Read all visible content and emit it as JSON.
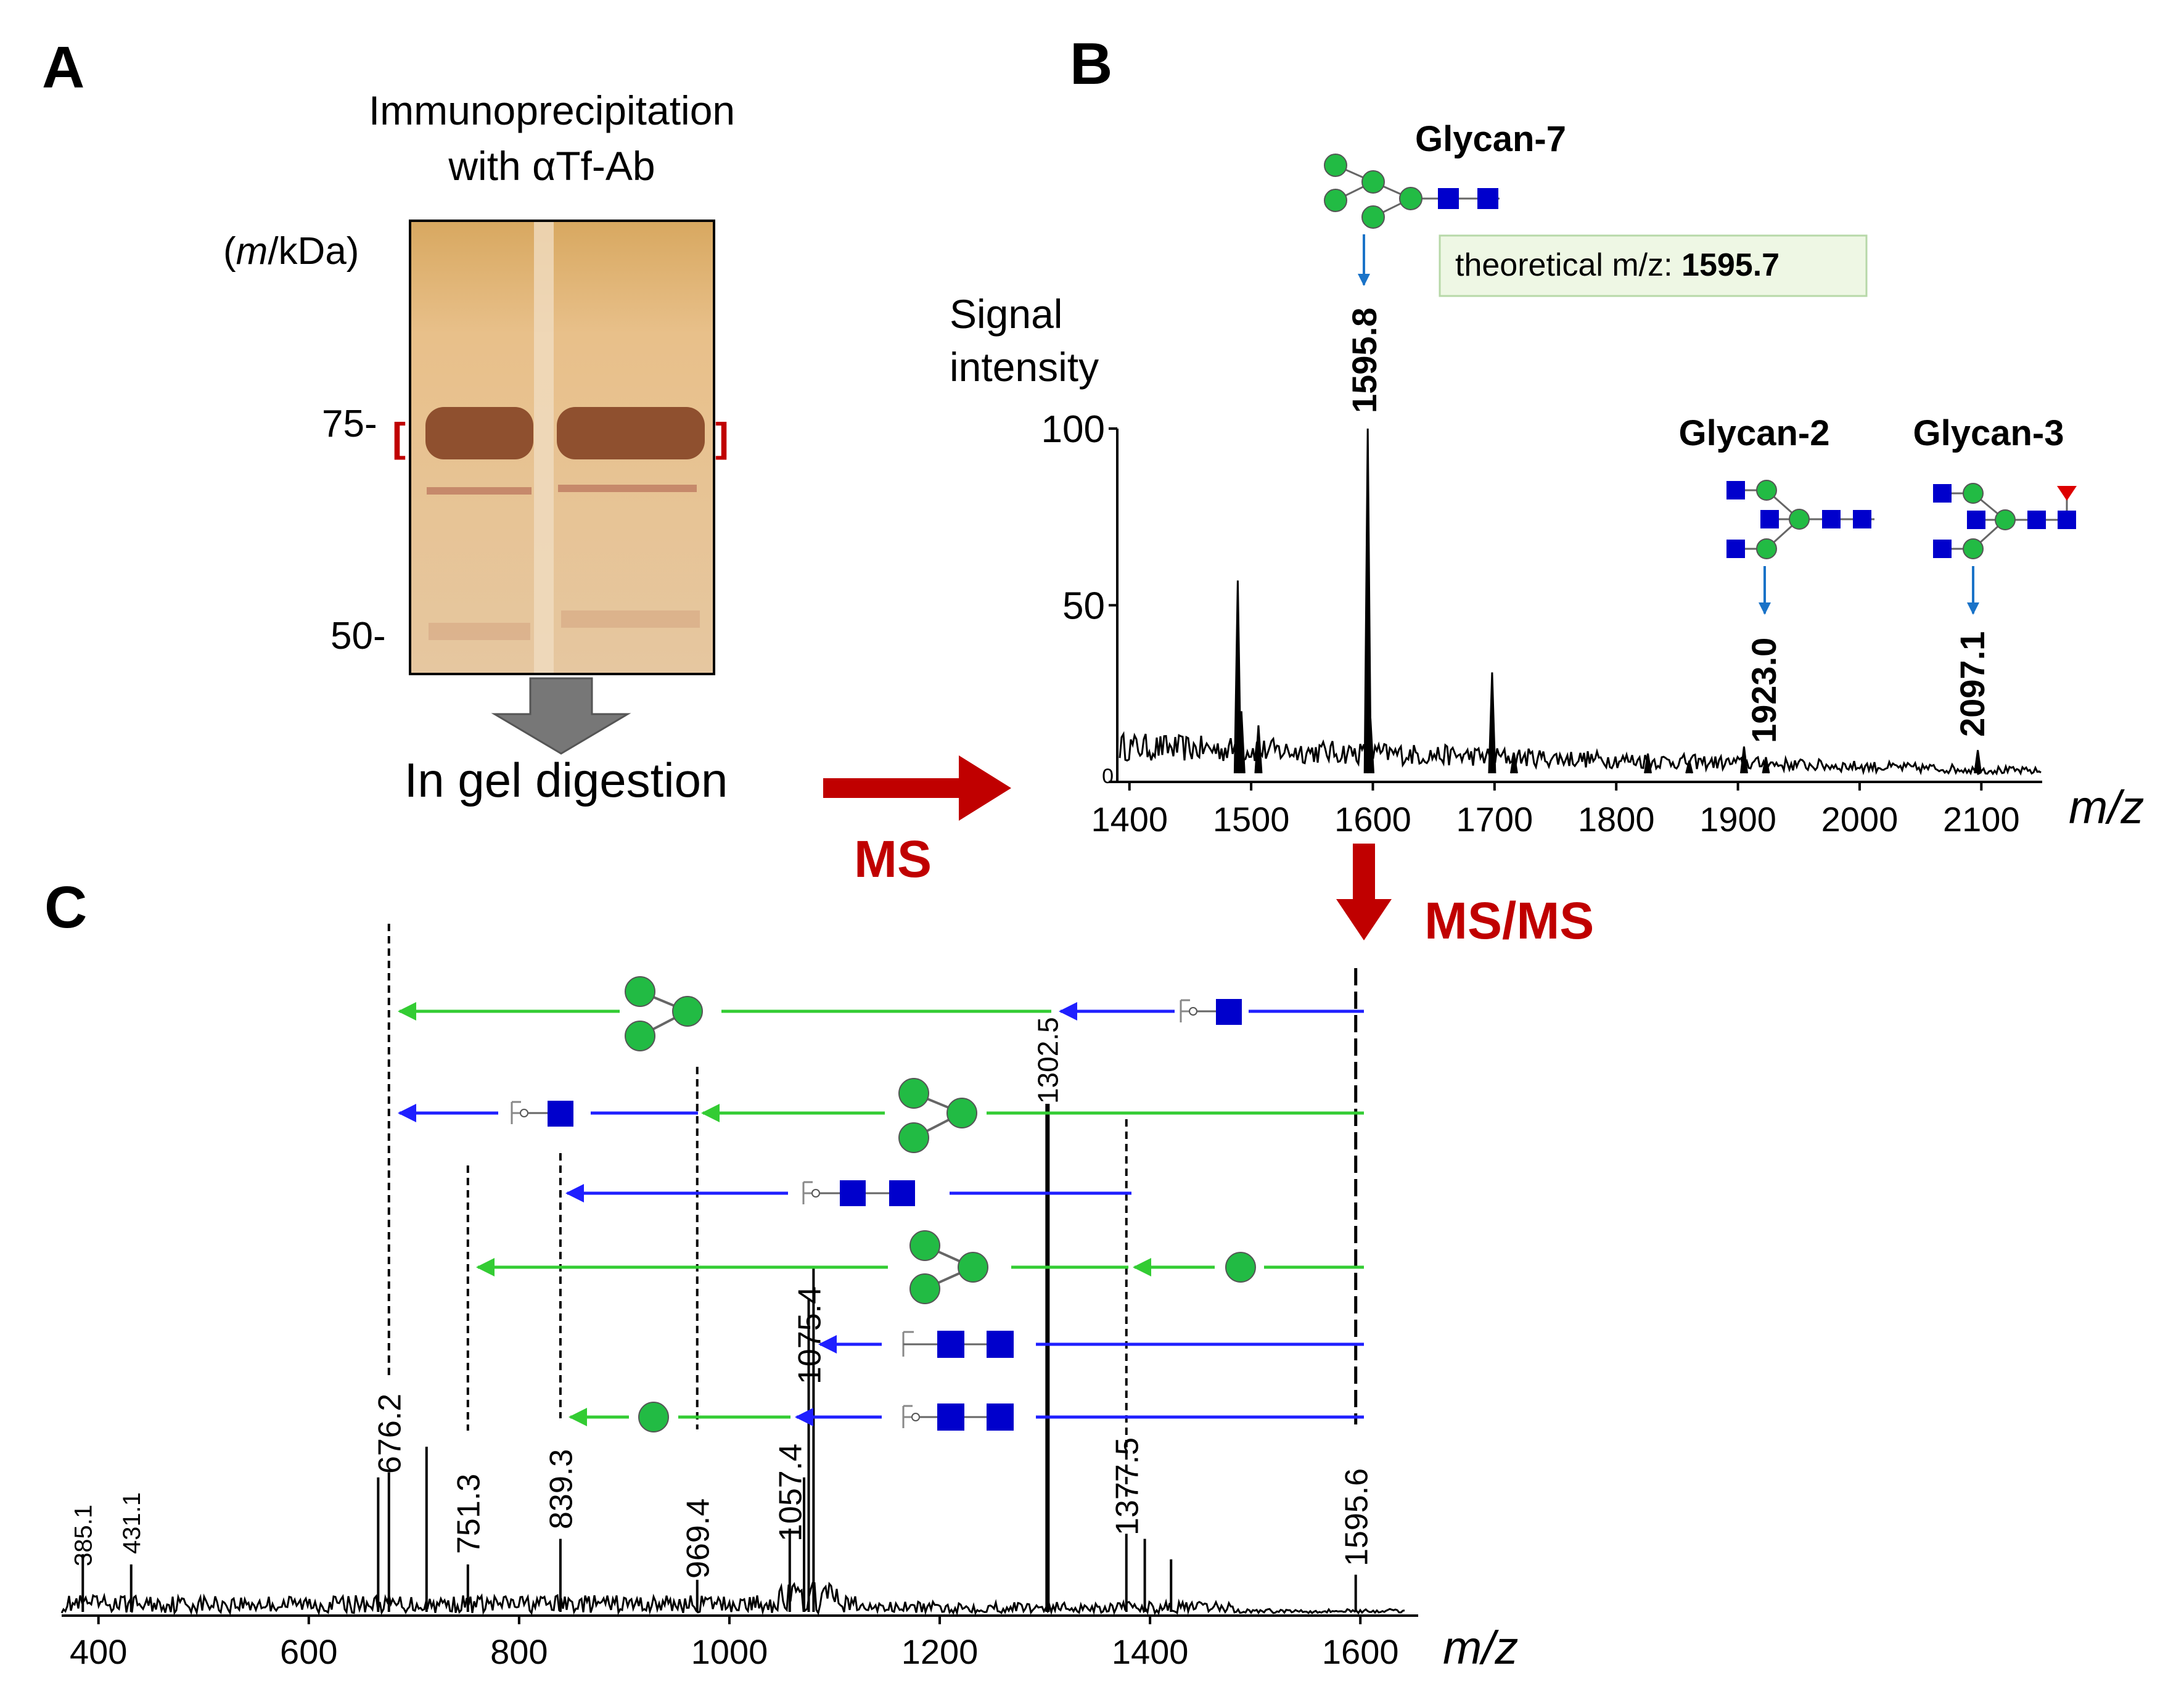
{
  "panels": {
    "a": "A",
    "b": "B",
    "c": "C"
  },
  "colors": {
    "red": "#c00000",
    "green": "#33cc33",
    "blue": "#1f1fff",
    "glycanBlue": "#0000cc",
    "glycanGreen": "#22bb44",
    "arrowBlue": "#1a73c8",
    "gel": "#e6c392",
    "band": "#8a4a2a"
  },
  "gel": {
    "title_line1": "Immunoprecipitation",
    "title_line2": "with αTf-Ab",
    "unit_prefix": "(",
    "unit_m": "m",
    "unit_rest": "/kDa)",
    "marker_75": "75-",
    "marker_50": "50-",
    "bracket_left": "[",
    "bracket_right": "]",
    "digestion_label": "In gel digestion"
  },
  "arrows": {
    "ms_label": "MS",
    "msms_label": "MS/MS"
  },
  "chart_data": [
    {
      "type": "line",
      "panel": "B",
      "title": "",
      "ylabel_line1": "Signal",
      "ylabel_line2": "intensity",
      "xlabel": "m/z",
      "xlim": [
        1390,
        2150
      ],
      "ylim": [
        0,
        100
      ],
      "y_ticks": [
        "100",
        "50",
        "0"
      ],
      "x_ticks": [
        "1400",
        "1500",
        "1600",
        "1700",
        "1800",
        "1900",
        "2000",
        "2100"
      ],
      "peaks": [
        {
          "x": 1489,
          "y": 57
        },
        {
          "x": 1492,
          "y": 20
        },
        {
          "x": 1506,
          "y": 16
        },
        {
          "x": 1595.8,
          "y": 100
        },
        {
          "x": 1598,
          "y": 18
        },
        {
          "x": 1698,
          "y": 31
        },
        {
          "x": 1716,
          "y": 8
        },
        {
          "x": 1826,
          "y": 8
        },
        {
          "x": 1860,
          "y": 6
        },
        {
          "x": 1905,
          "y": 10
        },
        {
          "x": 1923,
          "y": 7
        },
        {
          "x": 2097.1,
          "y": 9
        }
      ],
      "annotations": [
        {
          "label": "1595.8",
          "glycan": "Glycan-7",
          "x": 1595.8
        },
        {
          "label": "1923.0",
          "glycan": "Glycan-2",
          "x": 1923.0
        },
        {
          "label": "2097.1",
          "glycan": "Glycan-3",
          "x": 2097.1
        }
      ],
      "theoretical_prefix": "theoretical m/z: ",
      "theoretical_value": "1595.7"
    },
    {
      "type": "line",
      "panel": "C",
      "title": "",
      "xlabel": "m/z",
      "xlim": [
        365,
        1655
      ],
      "x_ticks": [
        "400",
        "600",
        "800",
        "1000",
        "1200",
        "1400",
        "1600"
      ],
      "peaks": [
        {
          "x": 385.1,
          "y": 12
        },
        {
          "x": 431.1,
          "y": 10
        },
        {
          "x": 666,
          "y": 27
        },
        {
          "x": 676.2,
          "y": 28
        },
        {
          "x": 712,
          "y": 33
        },
        {
          "x": 751.3,
          "y": 10
        },
        {
          "x": 839.3,
          "y": 15
        },
        {
          "x": 969.4,
          "y": 7
        },
        {
          "x": 1057.4,
          "y": 17
        },
        {
          "x": 1071,
          "y": 27
        },
        {
          "x": 1075.4,
          "y": 62
        },
        {
          "x": 1080,
          "y": 68
        },
        {
          "x": 1302.5,
          "y": 100
        },
        {
          "x": 1377.5,
          "y": 16
        },
        {
          "x": 1395,
          "y": 15
        },
        {
          "x": 1420,
          "y": 11
        },
        {
          "x": 1595.6,
          "y": 8
        }
      ],
      "peak_labels": [
        "385.1",
        "431.1",
        "676.2",
        "751.3",
        "839.3",
        "969.4",
        "1057.4",
        "1075.4",
        "1302.5",
        "1377.5",
        "1595.6"
      ],
      "fragments": [
        {
          "from": 1302.5,
          "to": 676.2,
          "loss": "hexose trimer",
          "color": "green"
        },
        {
          "from": 1595.6,
          "to": 1302.5,
          "loss": "HexNAc with reducing end",
          "color": "blue"
        },
        {
          "from": 969.4,
          "to": 676.2,
          "loss": "HexNAc with reducing end",
          "color": "blue"
        },
        {
          "from": 1595.6,
          "to": 969.4,
          "loss": "hexose trimer",
          "color": "green"
        },
        {
          "from": 1377.5,
          "to": 839.3,
          "loss": "HexNAc dimer",
          "color": "blue"
        },
        {
          "from": 1377.5,
          "to": 751.3,
          "loss": "hexose trimer",
          "color": "green"
        },
        {
          "from": 1595.6,
          "to": 1377.5,
          "loss": "hexose",
          "color": "green"
        },
        {
          "from": 1595.6,
          "to": 1075.4,
          "loss": "HexNAc dimer",
          "color": "blue"
        },
        {
          "from": 1595.6,
          "to": 1057.4,
          "loss": "HexNAc dimer with reducing end",
          "color": "blue"
        },
        {
          "from": 1057.4,
          "to": 839.3,
          "loss": "hexose",
          "color": "green"
        }
      ]
    }
  ]
}
